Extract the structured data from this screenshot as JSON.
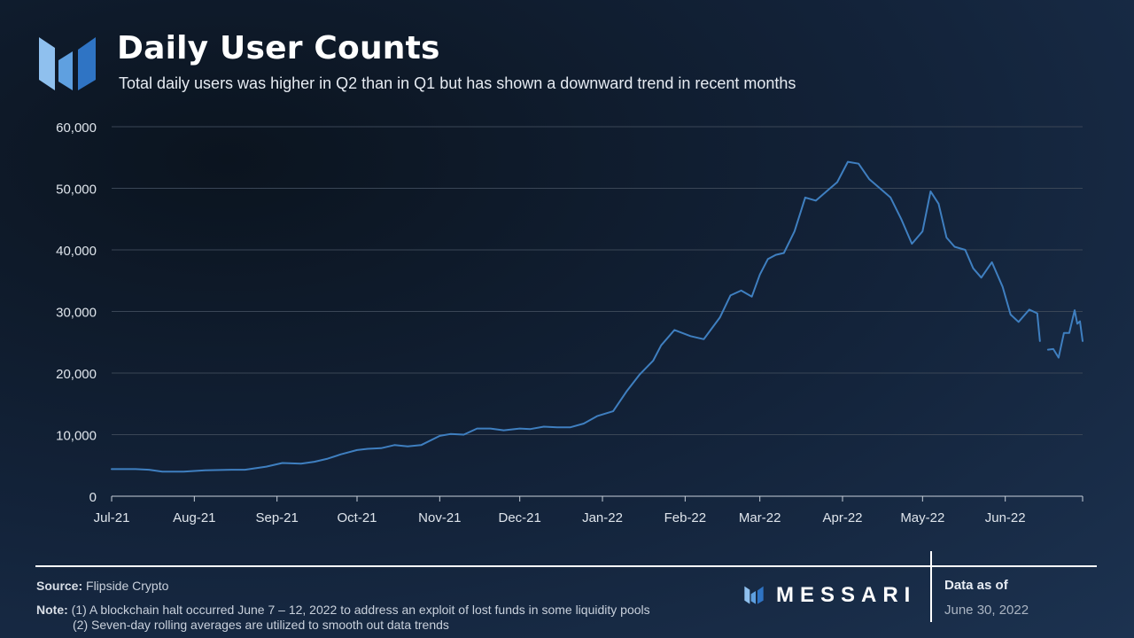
{
  "header": {
    "title": "Daily User Counts",
    "subtitle": "Total daily users was higher in Q2 than in Q1 but has shown a downward trend in recent months"
  },
  "footer": {
    "source_label": "Source:",
    "source_value": "Flipside Crypto",
    "note_label": "Note:",
    "note_line1": "(1) A blockchain halt occurred June 7 – 12, 2022 to address an exploit of lost funds in some liquidity pools",
    "note_line2": "(2) Seven-day rolling averages are utilized to smooth out data trends",
    "brand": "MESSARI",
    "data_as_of_label": "Data as of",
    "data_as_of_date": "June 30, 2022"
  },
  "colors": {
    "line": "#3f7fc0",
    "grid": "#3a4656",
    "axis_text": "#dfe5ec",
    "logo_light": "#8fc0ee",
    "logo_dark": "#2f74c4"
  },
  "chart_data": {
    "type": "line",
    "title": "Daily User Counts",
    "xlabel": "",
    "ylabel": "",
    "x_ticks": [
      "Jul-21",
      "Aug-21",
      "Sep-21",
      "Oct-21",
      "Nov-21",
      "Dec-21",
      "Jan-22",
      "Feb-22",
      "Mar-22",
      "Apr-22",
      "May-22",
      "Jun-22"
    ],
    "y_ticks": [
      "60,000",
      "50,000",
      "40,000",
      "30,000",
      "20,000",
      "10,000",
      "0"
    ],
    "ylim": [
      0,
      60000
    ],
    "xlim": [
      "2021-07-01",
      "2022-06-30"
    ],
    "grid": true,
    "legend": "none",
    "series": [
      {
        "values": [
          [
            "2021-07-01",
            4400
          ],
          [
            "2021-07-10",
            4400
          ],
          [
            "2021-07-15",
            4300
          ],
          [
            "2021-07-20",
            4000
          ],
          [
            "2021-07-28",
            4000
          ],
          [
            "2021-08-05",
            4200
          ],
          [
            "2021-08-15",
            4300
          ],
          [
            "2021-08-20",
            4300
          ],
          [
            "2021-08-28",
            4800
          ],
          [
            "2021-09-03",
            5400
          ],
          [
            "2021-09-10",
            5300
          ],
          [
            "2021-09-15",
            5600
          ],
          [
            "2021-09-20",
            6100
          ],
          [
            "2021-09-25",
            6800
          ],
          [
            "2021-10-01",
            7500
          ],
          [
            "2021-10-05",
            7700
          ],
          [
            "2021-10-10",
            7800
          ],
          [
            "2021-10-15",
            8300
          ],
          [
            "2021-10-20",
            8100
          ],
          [
            "2021-10-25",
            8300
          ],
          [
            "2021-11-01",
            9800
          ],
          [
            "2021-11-05",
            10100
          ],
          [
            "2021-11-10",
            10000
          ],
          [
            "2021-11-15",
            11000
          ],
          [
            "2021-11-20",
            11000
          ],
          [
            "2021-11-25",
            10700
          ],
          [
            "2021-12-01",
            11000
          ],
          [
            "2021-12-05",
            10900
          ],
          [
            "2021-12-10",
            11300
          ],
          [
            "2021-12-15",
            11200
          ],
          [
            "2021-12-20",
            11200
          ],
          [
            "2021-12-25",
            11800
          ],
          [
            "2021-12-30",
            13000
          ],
          [
            "2022-01-05",
            13800
          ],
          [
            "2022-01-10",
            17000
          ],
          [
            "2022-01-15",
            19800
          ],
          [
            "2022-01-20",
            22000
          ],
          [
            "2022-01-23",
            24500
          ],
          [
            "2022-01-28",
            27000
          ],
          [
            "2022-02-03",
            26000
          ],
          [
            "2022-02-08",
            25500
          ],
          [
            "2022-02-14",
            29000
          ],
          [
            "2022-02-18",
            32600
          ],
          [
            "2022-02-22",
            33400
          ],
          [
            "2022-02-26",
            32400
          ],
          [
            "2022-03-01",
            36000
          ],
          [
            "2022-03-04",
            38500
          ],
          [
            "2022-03-07",
            39200
          ],
          [
            "2022-03-10",
            39500
          ],
          [
            "2022-03-14",
            43000
          ],
          [
            "2022-03-18",
            48500
          ],
          [
            "2022-03-22",
            48000
          ],
          [
            "2022-03-26",
            49500
          ],
          [
            "2022-03-30",
            51000
          ],
          [
            "2022-04-03",
            54300
          ],
          [
            "2022-04-07",
            54000
          ],
          [
            "2022-04-11",
            51500
          ],
          [
            "2022-04-15",
            50000
          ],
          [
            "2022-04-19",
            48500
          ],
          [
            "2022-04-23",
            45000
          ],
          [
            "2022-04-27",
            41000
          ],
          [
            "2022-05-01",
            43000
          ],
          [
            "2022-05-04",
            49500
          ],
          [
            "2022-05-07",
            47500
          ],
          [
            "2022-05-10",
            42000
          ],
          [
            "2022-05-13",
            40500
          ],
          [
            "2022-05-17",
            40000
          ],
          [
            "2022-05-20",
            37000
          ],
          [
            "2022-05-23",
            35500
          ],
          [
            "2022-05-27",
            38000
          ],
          [
            "2022-05-31",
            34000
          ],
          [
            "2022-06-03",
            29500
          ],
          [
            "2022-06-06",
            28300
          ],
          [
            "2022-06-10",
            30300
          ],
          [
            "2022-06-13",
            29700
          ],
          [
            "2022-06-14",
            25200
          ],
          null,
          [
            "2022-06-17",
            23800
          ],
          [
            "2022-06-19",
            23900
          ],
          [
            "2022-06-21",
            22500
          ],
          [
            "2022-06-23",
            26500
          ],
          [
            "2022-06-25",
            26500
          ],
          [
            "2022-06-27",
            30200
          ],
          [
            "2022-06-28",
            28000
          ],
          [
            "2022-06-29",
            28400
          ],
          [
            "2022-06-30",
            25200
          ]
        ]
      }
    ]
  }
}
